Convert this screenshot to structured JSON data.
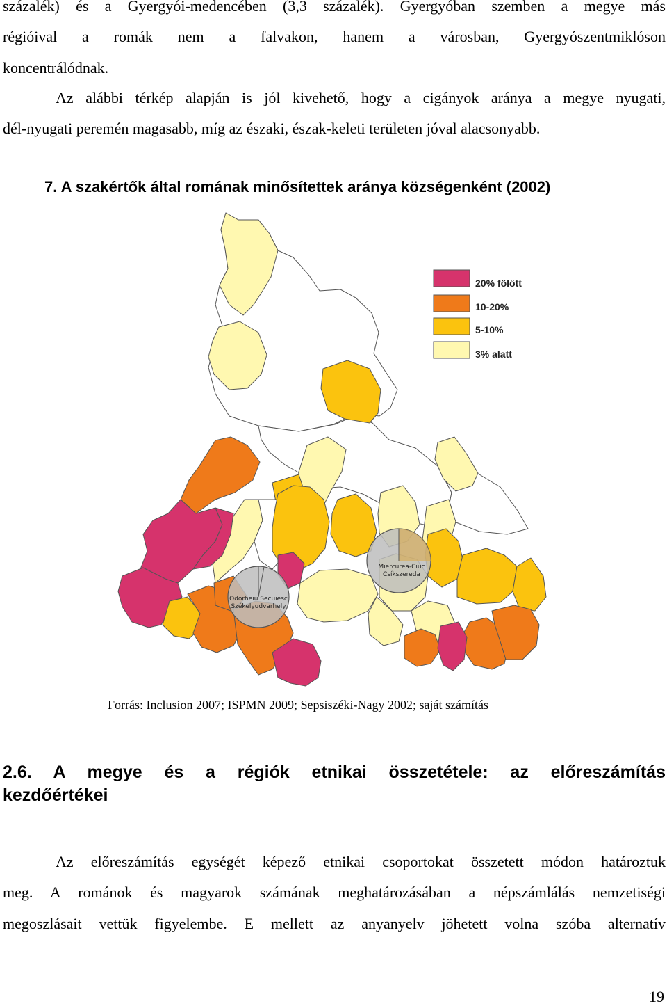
{
  "body_top": [
    "százalék) és a Gyergyói-medencében (3,3 százalék). Gyergyóban szemben a megye más",
    "régióival a romák nem a falvakon, hanem a városban, Gyergyószentmiklóson",
    "koncentrálódnak.",
    "Az alábbi térkép alapján is jól kivehető, hogy a cigányok aránya a megye nyugati,",
    "dél-nyugati peremén magasabb, míg az északi, észak-keleti területen jóval alacsonyabb."
  ],
  "figure": {
    "title": "7. A szakértők által romának minősítettek aránya községenként (2002)",
    "source": "Forrás: Inclusion 2007;  ISPMN 2009; Sepsiszéki-Nagy 2002; saját számítás"
  },
  "map": {
    "legend": [
      {
        "label": "20% fölött",
        "color": "#d6336c"
      },
      {
        "label": "10-20%",
        "color": "#ef7a1a"
      },
      {
        "label": "5-10%",
        "color": "#fbc30e"
      },
      {
        "label": "3% alatt",
        "color": "#fff8b0"
      }
    ],
    "no_data_color": "#ffffff",
    "city_circle_color": "#bdbdbd",
    "cities": [
      {
        "label_line1": "Odorheiu Secuiesc",
        "label_line2": "Székelyudvarhely"
      },
      {
        "label_line1": "Miercurea-Ciuc",
        "label_line2": "Csíkszereda"
      }
    ]
  },
  "section": {
    "heading_line1": "2.6. A megye és a régiók etnikai összetétele: az előreszámítás",
    "heading_line2": "kezdőértékei"
  },
  "body_bottom": [
    "Az előreszámítás egységét képező etnikai csoportokat összetett módon határoztuk",
    "meg. A románok és magyarok számának meghatározásában a népszámlálás nemzetiségi",
    "megoszlásait vettük figyelembe. E mellett az anyanyelv jöhetett volna szóba alternatív"
  ],
  "page_number": "19"
}
